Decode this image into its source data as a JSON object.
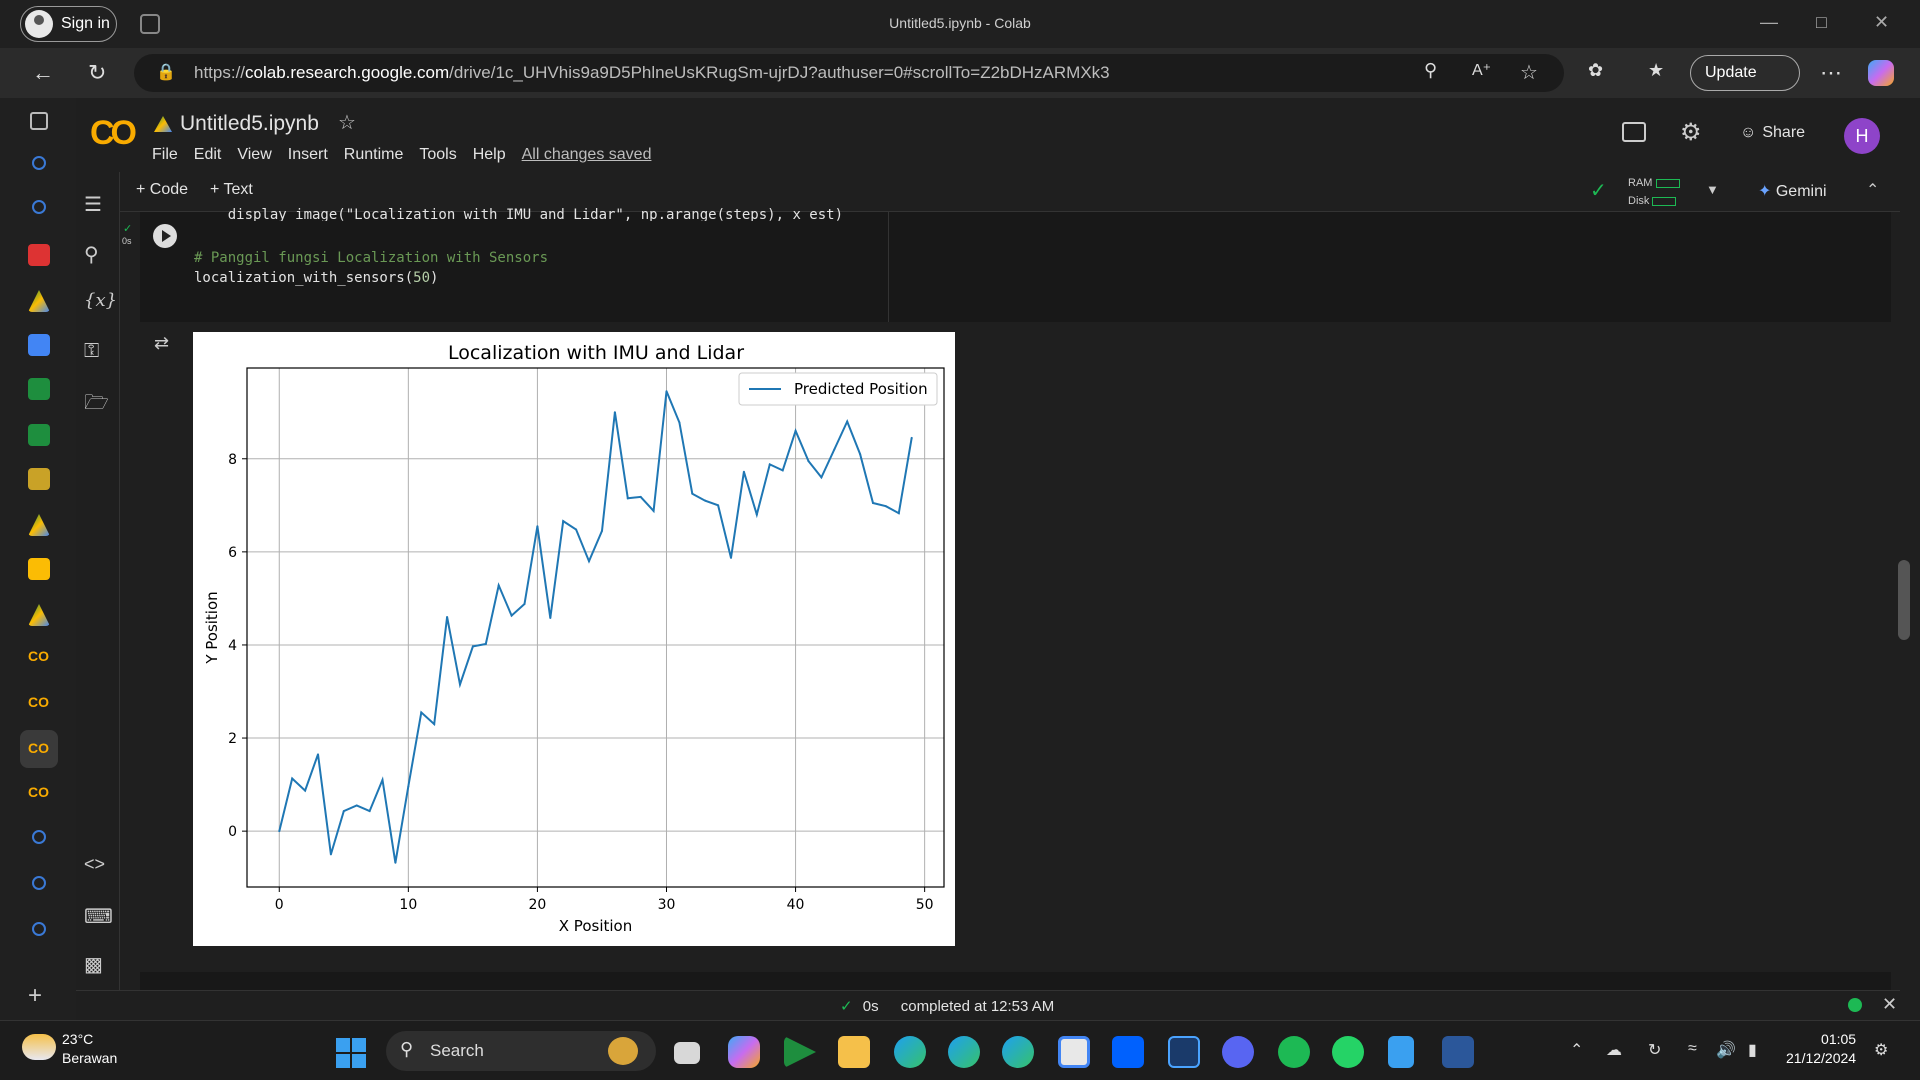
{
  "browser": {
    "signin_label": "Sign in",
    "window_title": "Untitled5.ipynb - Colab",
    "url_prefix": "https://",
    "url_domain": "colab.research.google.com",
    "url_rest": "/drive/1c_UHVhis9a9D5PhlneUsKRugSm-ujrDJ?authuser=0#scrollTo=Z2bDHzARMXk3",
    "update_label": "Update"
  },
  "colab": {
    "logo": "CO",
    "notebook_title": "Untitled5.ipynb",
    "menu": [
      "File",
      "Edit",
      "View",
      "Insert",
      "Runtime",
      "Tools",
      "Help"
    ],
    "saved_status": "All changes saved",
    "add_code": "+ Code",
    "add_text": "+ Text",
    "share_label": "Share",
    "avatar_letter": "H",
    "ram_label": "RAM",
    "disk_label": "Disk",
    "gemini_label": "Gemini",
    "cell_exec_time": "0s"
  },
  "cell": {
    "line1": "    display_image(\"Localization with IMU and Lidar\", np.arange(steps), x_est)",
    "line2": "# Panggil fungsi Localization with Sensors",
    "line3_fn": "localization_with_sensors(",
    "line3_arg": "50",
    "line3_end": ")"
  },
  "status": {
    "time": "0s",
    "completed": "completed at 12:53 AM"
  },
  "taskbar": {
    "temp": "23°C",
    "weather": "Berawan",
    "search_label": "Search",
    "time": "01:05",
    "date": "21/12/2024"
  },
  "chart_data": {
    "type": "line",
    "title": "Localization with IMU and Lidar",
    "xlabel": "X Position",
    "ylabel": "Y Position",
    "xlim": [
      -2.5,
      51.5
    ],
    "ylim": [
      -1.2,
      9.95
    ],
    "xticks": [
      0,
      10,
      20,
      30,
      40,
      50
    ],
    "yticks": [
      0,
      2,
      4,
      6,
      8
    ],
    "grid": true,
    "legend": "top-right",
    "colors": {
      "line": "#1f77b4"
    },
    "series": [
      {
        "name": "Predicted Position",
        "x": [
          0,
          1,
          2,
          3,
          4,
          5,
          6,
          7,
          8,
          9,
          10,
          11,
          12,
          13,
          14,
          15,
          16,
          17,
          18,
          19,
          20,
          21,
          22,
          23,
          24,
          25,
          26,
          27,
          28,
          29,
          30,
          31,
          32,
          33,
          34,
          35,
          36,
          37,
          38,
          39,
          40,
          41,
          42,
          43,
          44,
          45,
          46,
          47,
          48,
          49
        ],
        "values": [
          0.0,
          1.13,
          0.87,
          1.65,
          -0.5,
          0.43,
          0.55,
          0.43,
          1.1,
          -0.68,
          0.96,
          2.55,
          2.3,
          4.6,
          3.15,
          3.97,
          4.02,
          5.28,
          4.63,
          4.88,
          6.55,
          4.58,
          6.66,
          6.48,
          5.8,
          6.45,
          9.0,
          7.15,
          7.18,
          6.88,
          9.45,
          8.78,
          7.25,
          7.1,
          7.0,
          5.87,
          7.72,
          6.8,
          7.88,
          7.75,
          8.6,
          7.95,
          7.6,
          8.2,
          8.8,
          8.1,
          7.05,
          6.98,
          6.83,
          8.45
        ]
      }
    ]
  }
}
